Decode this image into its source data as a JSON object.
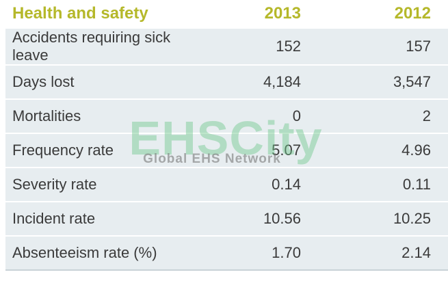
{
  "table": {
    "header": [
      "Health and safety",
      "2013",
      "2012"
    ],
    "rows": [
      [
        "Accidents requiring sick leave",
        "152",
        "157"
      ],
      [
        "Days lost",
        "4,184",
        "3,547"
      ],
      [
        "Mortalities",
        "0",
        "2"
      ],
      [
        "Frequency rate",
        "5.07",
        "4.96"
      ],
      [
        "Severity rate",
        "0.14",
        "0.11"
      ],
      [
        "Incident rate",
        "10.56",
        "10.25"
      ],
      [
        "Absenteeism rate (%)",
        "1.70",
        "2.14"
      ]
    ]
  },
  "watermark": {
    "title": "EHSCity",
    "subtitle": "Global EHS Network"
  }
}
